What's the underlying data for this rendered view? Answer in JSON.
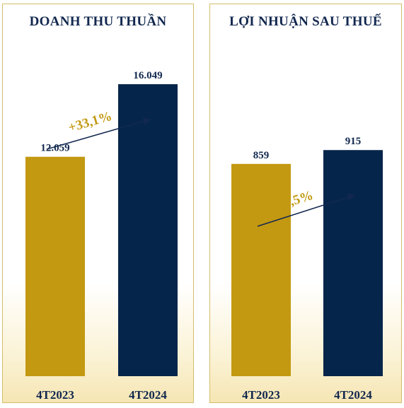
{
  "chart_data": [
    {
      "type": "bar",
      "title": "DOANH THU THUẦN",
      "categories": [
        "4T2023",
        "4T2024"
      ],
      "values": [
        12.059,
        16.049
      ],
      "value_labels": [
        "12.059",
        "16.049"
      ],
      "colors": [
        "#c39912",
        "#05254a"
      ],
      "ylim": [
        0,
        18.5
      ],
      "annotation": "+33,1%",
      "annotation_color": "#c39912",
      "grid": false
    },
    {
      "type": "bar",
      "title": "LỢI NHUẬN SAU THUẾ",
      "categories": [
        "4T2023",
        "4T2024"
      ],
      "values": [
        859,
        915
      ],
      "value_labels": [
        "859",
        "915"
      ],
      "colors": [
        "#c39912",
        "#05254a"
      ],
      "ylim": [
        0,
        1362
      ],
      "annotation": "+6,5%",
      "annotation_color": "#c39912",
      "grid": false
    }
  ]
}
